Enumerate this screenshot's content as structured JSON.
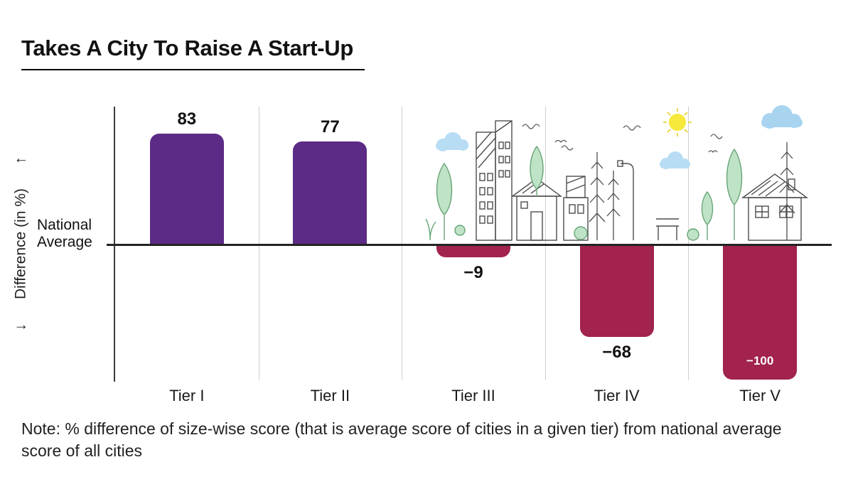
{
  "header": {
    "title": "Takes A City To Raise A Start-Up"
  },
  "chart_data": {
    "type": "bar",
    "title": "Takes A City To Raise A Start-Up",
    "categories": [
      "Tier I",
      "Tier II",
      "Tier III",
      "Tier IV",
      "Tier V"
    ],
    "values": [
      83,
      77,
      -9,
      -68,
      -100
    ],
    "value_labels": [
      "83",
      "77",
      "−9",
      "−68",
      "−100"
    ],
    "ylabel": "Difference (in %)",
    "y_axis_arrow_up": "↑",
    "y_axis_arrow_down": "↓",
    "baseline_label": "National Average",
    "ylim": [
      -103,
      103
    ],
    "grid": "vertical-category-separators",
    "legend_position": "none",
    "decor": "cityscape-line-art-illustration",
    "colors": {
      "positive_bar": "#5b2b85",
      "negative_bar": "#a1234e",
      "axis": "#3a3a3a",
      "baseline": "#242424",
      "gridline": "#cfcfcf",
      "inside_label": "#ffffff"
    }
  },
  "note": {
    "text": "Note: % difference of size-wise score (that is average score of cities in a given tier) from national average score of all cities"
  }
}
